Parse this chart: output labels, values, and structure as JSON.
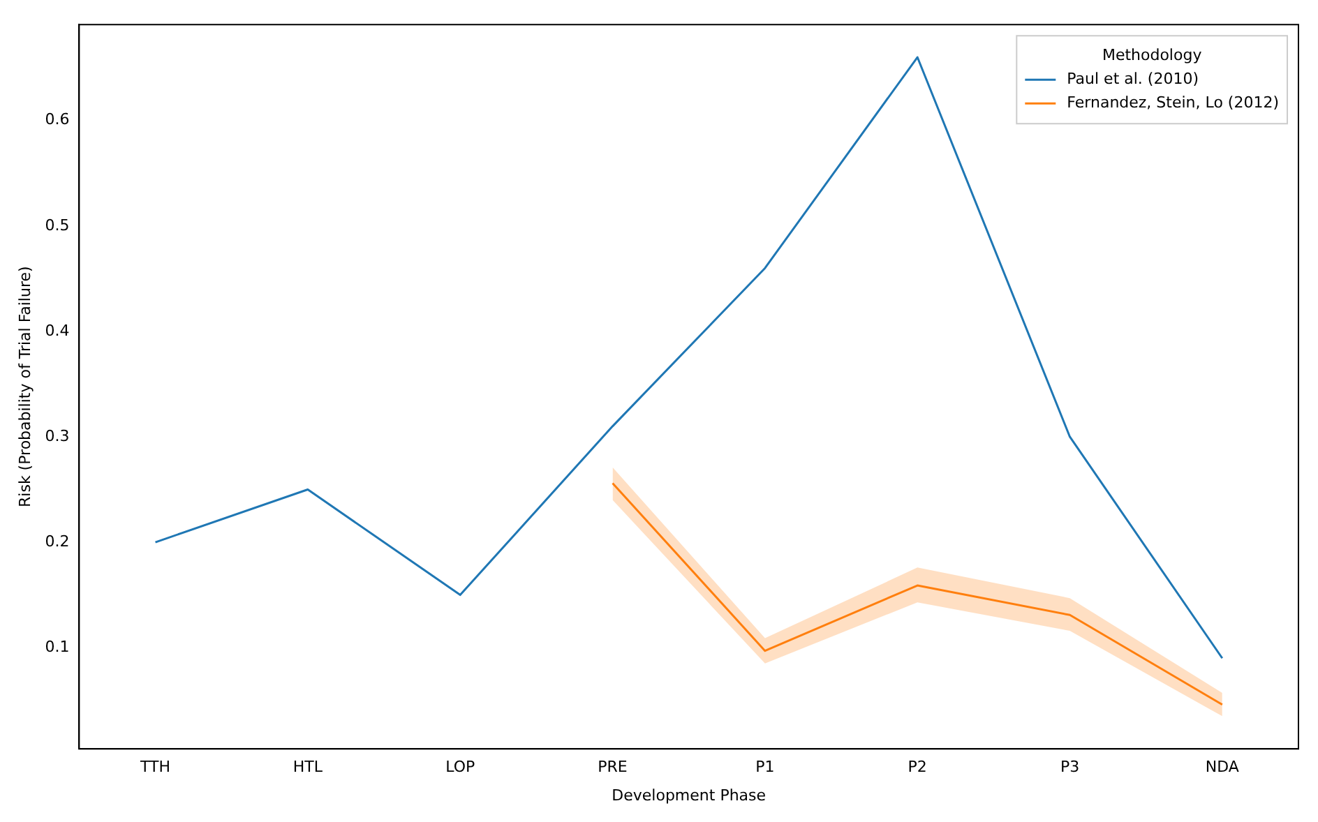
{
  "chart_data": {
    "type": "line",
    "xlabel": "Development Phase",
    "ylabel": "Risk (Probability of Trial Failure)",
    "legend_title": "Methodology",
    "legend": "top right",
    "grid": false,
    "categories": [
      "TTH",
      "HTL",
      "LOP",
      "PRE",
      "P1",
      "P2",
      "P3",
      "NDA"
    ],
    "ylim": [
      0.004,
      0.691
    ],
    "yticks": [
      0.1,
      0.2,
      0.3,
      0.4,
      0.5,
      0.6
    ],
    "series": [
      {
        "name": "Paul et al. (2010)",
        "color": "#1f77b4",
        "values": [
          0.2,
          0.25,
          0.15,
          0.31,
          0.46,
          0.66,
          0.3,
          0.09
        ]
      },
      {
        "name": "Fernandez, Stein, Lo (2012)",
        "color": "#ff7f0e",
        "values": [
          null,
          null,
          null,
          0.256,
          0.097,
          0.159,
          0.131,
          0.046
        ],
        "lower": [
          null,
          null,
          null,
          0.24,
          0.085,
          0.143,
          0.116,
          0.035
        ],
        "upper": [
          null,
          null,
          null,
          0.271,
          0.109,
          0.176,
          0.147,
          0.057
        ]
      }
    ]
  }
}
